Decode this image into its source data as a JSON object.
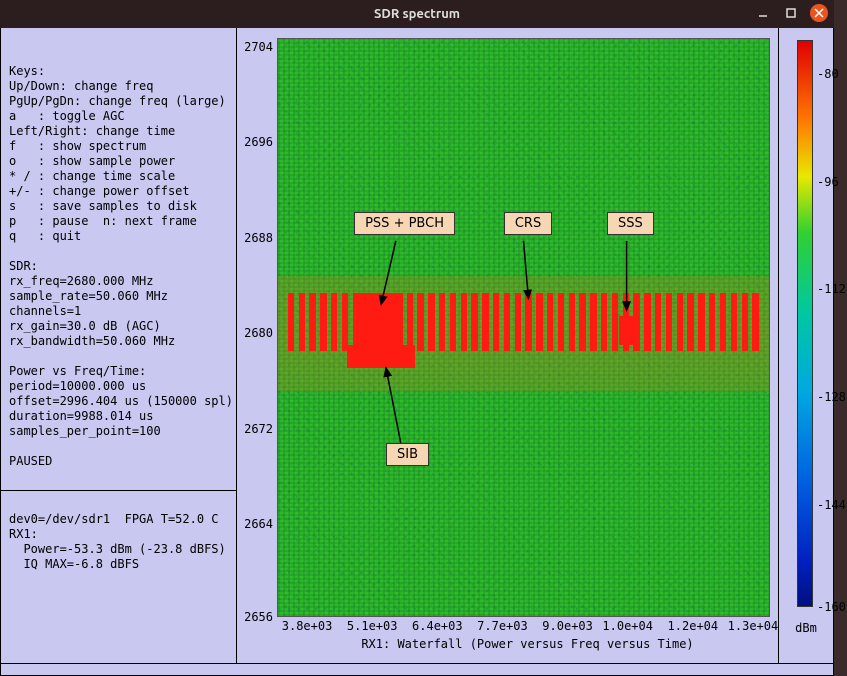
{
  "window": {
    "title": "SDR spectrum"
  },
  "sidebar": {
    "keys_block": "\nKeys:\nUp/Down: change freq\nPgUp/PgDn: change freq (large)\na   : toggle AGC\nLeft/Right: change time\nf   : show spectrum\no   : show sample power\n* / : change time scale\n+/- : change power offset\ns   : save samples to disk\np   : pause  n: next frame\nq   : quit",
    "sdr_block": "SDR:\nrx_freq=2680.000 MHz\nsample_rate=50.060 MHz\nchannels=1\nrx_gain=30.0 dB (AGC)\nrx_bandwidth=50.060 MHz",
    "pvf_block": "Power vs Freq/Time:\nperiod=10000.000 us\noffset=2996.404 us (150000 spl)\nduration=9988.014 us\nsamples_per_point=100",
    "paused": "PAUSED",
    "dev_block": "dev0=/dev/sdr1  FPGA T=52.0 C\nRX1:\n  Power=-53.3 dBm (-23.8 dBFS)\n  IQ MAX=-6.8 dBFS"
  },
  "plot": {
    "xlabel": "RX1: Waterfall (Power versus Freq versus Time)",
    "y_ticks": [
      {
        "label": "2704",
        "pct": 1.5
      },
      {
        "label": "2696",
        "pct": 18.0
      },
      {
        "label": "2688",
        "pct": 34.5
      },
      {
        "label": "2680",
        "pct": 51.0
      },
      {
        "label": "2672",
        "pct": 67.5
      },
      {
        "label": "2664",
        "pct": 84.0
      },
      {
        "label": "2656",
        "pct": 100.0
      }
    ],
    "x_ticks": [
      {
        "label": "3.8e+03",
        "pct": 6
      },
      {
        "label": "5.1e+03",
        "pct": 19
      },
      {
        "label": "6.4e+03",
        "pct": 32
      },
      {
        "label": "7.7e+03",
        "pct": 45
      },
      {
        "label": "9.0e+03",
        "pct": 58
      },
      {
        "label": "1.0e+04",
        "pct": 70
      },
      {
        "label": "1.2e+04",
        "pct": 83
      },
      {
        "label": "1.3e+04",
        "pct": 95
      }
    ],
    "colorbar": {
      "unit": "dBm",
      "ticks": [
        {
          "label": "-80",
          "pct": 6
        },
        {
          "label": "-96",
          "pct": 25
        },
        {
          "label": "-112",
          "pct": 44
        },
        {
          "label": "-128",
          "pct": 63
        },
        {
          "label": "-144",
          "pct": 82
        },
        {
          "label": "-160",
          "pct": 100
        }
      ]
    },
    "annotations": {
      "pss_pbch": "PSS + PBCH",
      "crs": "CRS",
      "sss": "SSS",
      "sib": "SIB"
    },
    "band": {
      "top_pct": 44,
      "height_pct": 14,
      "bars": {
        "count": 44,
        "width_pct": 1.3,
        "gap_pct": 0.9,
        "color": "#ff1a12"
      },
      "pss_block": {
        "left_pct": 16.5,
        "width_pct": 9,
        "top_pct": 44,
        "height_pct": 11
      },
      "sib_block": {
        "left_pct": 14,
        "width_pct": 14,
        "top_pct": 53,
        "height_pct": 4
      },
      "sss_block": {
        "left_pct": 69.5,
        "width_pct": 3,
        "top_pct": 48,
        "height_pct": 5
      },
      "haze_color": "rgba(200,120,30,0.3)"
    }
  }
}
